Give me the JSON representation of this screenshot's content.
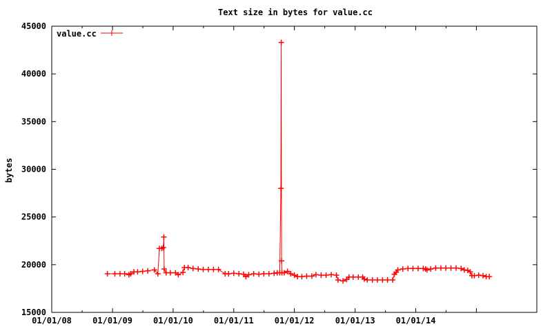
{
  "chart_data": {
    "type": "line",
    "title": "Text size in bytes for value.cc",
    "xlabel": "",
    "ylabel": "bytes",
    "legend": {
      "label": "value.cc",
      "placement": "top-left"
    },
    "grid": false,
    "color": "#ff0000",
    "x_axis": {
      "type": "date",
      "range": [
        "2008-01-01",
        "2015-12-31"
      ],
      "ticks": [
        {
          "date": "2008-01-01",
          "label": "01/01/08"
        },
        {
          "date": "2009-01-01",
          "label": "01/01/09"
        },
        {
          "date": "2010-01-01",
          "label": "01/01/10"
        },
        {
          "date": "2011-01-01",
          "label": "01/01/11"
        },
        {
          "date": "2012-01-01",
          "label": "01/01/12"
        },
        {
          "date": "2013-01-01",
          "label": "01/01/13"
        },
        {
          "date": "2014-01-01",
          "label": "01/01/14"
        },
        {
          "date": "2015-01-01",
          "label": ""
        }
      ]
    },
    "y_axis": {
      "range": [
        15000,
        45000
      ],
      "ticks": [
        15000,
        20000,
        25000,
        30000,
        35000,
        40000,
        45000
      ]
    },
    "series": [
      {
        "name": "value.cc",
        "points": [
          [
            "2008-12-01",
            19050
          ],
          [
            "2009-01-15",
            19050
          ],
          [
            "2009-02-15",
            19050
          ],
          [
            "2009-03-15",
            19050
          ],
          [
            "2009-04-10",
            18950
          ],
          [
            "2009-04-20",
            19050
          ],
          [
            "2009-05-10",
            19250
          ],
          [
            "2009-06-01",
            19250
          ],
          [
            "2009-07-01",
            19300
          ],
          [
            "2009-08-01",
            19350
          ],
          [
            "2009-09-10",
            19450
          ],
          [
            "2009-10-01",
            19050
          ],
          [
            "2009-10-10",
            21700
          ],
          [
            "2009-10-25",
            21700
          ],
          [
            "2009-11-03",
            21800
          ],
          [
            "2009-11-06",
            22900
          ],
          [
            "2009-11-08",
            19550
          ],
          [
            "2009-11-20",
            19150
          ],
          [
            "2009-12-15",
            19150
          ],
          [
            "2010-01-15",
            19150
          ],
          [
            "2010-02-01",
            18950
          ],
          [
            "2010-03-01",
            19200
          ],
          [
            "2010-03-10",
            19700
          ],
          [
            "2010-04-01",
            19700
          ],
          [
            "2010-05-01",
            19600
          ],
          [
            "2010-06-01",
            19550
          ],
          [
            "2010-07-01",
            19500
          ],
          [
            "2010-08-01",
            19500
          ],
          [
            "2010-09-01",
            19500
          ],
          [
            "2010-10-01",
            19500
          ],
          [
            "2010-11-10",
            19050
          ],
          [
            "2010-12-01",
            19050
          ],
          [
            "2011-01-01",
            19100
          ],
          [
            "2011-02-01",
            19050
          ],
          [
            "2011-03-01",
            19000
          ],
          [
            "2011-03-15",
            18750
          ],
          [
            "2011-04-01",
            18950
          ],
          [
            "2011-05-01",
            19050
          ],
          [
            "2011-06-01",
            19000
          ],
          [
            "2011-07-01",
            19050
          ],
          [
            "2011-08-01",
            19050
          ],
          [
            "2011-09-01",
            19100
          ],
          [
            "2011-09-20",
            19150
          ],
          [
            "2011-10-05",
            19150
          ],
          [
            "2011-10-12",
            28000
          ],
          [
            "2011-10-14",
            43300
          ],
          [
            "2011-10-16",
            20400
          ],
          [
            "2011-10-18",
            19150
          ],
          [
            "2011-11-01",
            19150
          ],
          [
            "2011-11-20",
            19300
          ],
          [
            "2011-12-10",
            19050
          ],
          [
            "2012-01-01",
            18900
          ],
          [
            "2012-01-20",
            18750
          ],
          [
            "2012-02-15",
            18750
          ],
          [
            "2012-03-15",
            18800
          ],
          [
            "2012-04-15",
            18800
          ],
          [
            "2012-05-10",
            18950
          ],
          [
            "2012-06-10",
            18900
          ],
          [
            "2012-07-10",
            18900
          ],
          [
            "2012-08-10",
            18950
          ],
          [
            "2012-09-10",
            18900
          ],
          [
            "2012-09-20",
            18400
          ],
          [
            "2012-10-20",
            18300
          ],
          [
            "2012-11-10",
            18450
          ],
          [
            "2012-11-25",
            18700
          ],
          [
            "2012-12-20",
            18700
          ],
          [
            "2013-01-20",
            18700
          ],
          [
            "2013-02-15",
            18700
          ],
          [
            "2013-02-25",
            18500
          ],
          [
            "2013-03-15",
            18400
          ],
          [
            "2013-04-15",
            18400
          ],
          [
            "2013-05-15",
            18400
          ],
          [
            "2013-06-15",
            18400
          ],
          [
            "2013-07-15",
            18400
          ],
          [
            "2013-08-15",
            18400
          ],
          [
            "2013-08-25",
            19000
          ],
          [
            "2013-09-05",
            19200
          ],
          [
            "2013-09-15",
            19450
          ],
          [
            "2013-10-15",
            19550
          ],
          [
            "2013-11-15",
            19600
          ],
          [
            "2013-12-15",
            19600
          ],
          [
            "2014-01-15",
            19600
          ],
          [
            "2014-02-15",
            19600
          ],
          [
            "2014-03-01",
            19550
          ],
          [
            "2014-03-10",
            19450
          ],
          [
            "2014-04-01",
            19550
          ],
          [
            "2014-05-01",
            19650
          ],
          [
            "2014-06-01",
            19650
          ],
          [
            "2014-07-01",
            19650
          ],
          [
            "2014-08-01",
            19650
          ],
          [
            "2014-09-01",
            19650
          ],
          [
            "2014-10-01",
            19600
          ],
          [
            "2014-10-20",
            19450
          ],
          [
            "2014-11-10",
            19400
          ],
          [
            "2014-11-25",
            19250
          ],
          [
            "2014-12-05",
            18850
          ],
          [
            "2014-12-20",
            18850
          ],
          [
            "2015-01-15",
            18900
          ],
          [
            "2015-02-10",
            18850
          ],
          [
            "2015-03-01",
            18750
          ],
          [
            "2015-03-20",
            18750
          ]
        ]
      }
    ]
  }
}
